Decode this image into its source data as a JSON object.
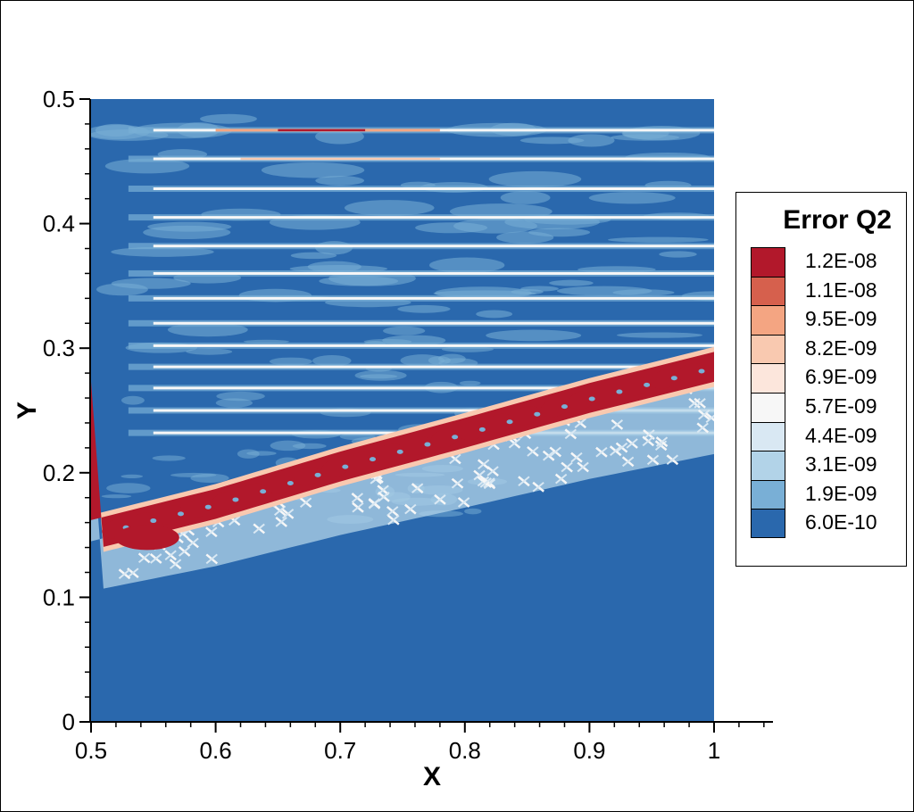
{
  "chart_data": {
    "type": "heatmap",
    "title": "",
    "xlabel": "X",
    "ylabel": "Y",
    "xlim": [
      0.5,
      1.05
    ],
    "ylim": [
      0,
      0.5
    ],
    "data_extent": {
      "x": [
        0.5,
        1.0
      ],
      "y": [
        0.0,
        0.5
      ]
    },
    "x_ticks": [
      0.5,
      0.6,
      0.7,
      0.8,
      0.9,
      1.0
    ],
    "x_tick_labels": [
      "0.5",
      "0.6",
      "0.7",
      "0.8",
      "0.9",
      "1"
    ],
    "y_ticks": [
      0,
      0.1,
      0.2,
      0.3,
      0.4,
      0.5
    ],
    "y_tick_labels": [
      "0",
      "0.1",
      "0.2",
      "0.3",
      "0.4",
      "0.5"
    ],
    "x_minor_step": 0.02,
    "y_minor_step": 0.02,
    "background_color": "#2a68ad",
    "legend": {
      "title": "Error Q2",
      "placement": "right",
      "levels": [
        {
          "label": "1.2E-08",
          "value": 1.2e-08,
          "color": "#b2182b"
        },
        {
          "label": "1.1E-08",
          "value": 1.1e-08,
          "color": "#d6604d"
        },
        {
          "label": "9.5E-09",
          "value": 9.5e-09,
          "color": "#f4a582"
        },
        {
          "label": "8.2E-09",
          "value": 8.2e-09,
          "color": "#f9c9b0"
        },
        {
          "label": "6.9E-09",
          "value": 6.9e-09,
          "color": "#fce6dc"
        },
        {
          "label": "5.7E-09",
          "value": 5.7e-09,
          "color": "#f7f7f7"
        },
        {
          "label": "4.4E-09",
          "value": 4.4e-09,
          "color": "#d9e8f3"
        },
        {
          "label": "3.1E-09",
          "value": 3.1e-09,
          "color": "#b2d3e8"
        },
        {
          "label": "1.9E-09",
          "value": 1.9e-09,
          "color": "#79afd6"
        },
        {
          "label": "6.0E-10",
          "value": 6e-10,
          "color": "#2a68ad"
        }
      ]
    },
    "features": {
      "shock_band": {
        "description_level": "max error band",
        "centerline": [
          [
            0.5,
            0.15
          ],
          [
            0.6,
            0.175
          ],
          [
            0.7,
            0.205
          ],
          [
            0.8,
            0.232
          ],
          [
            0.9,
            0.26
          ],
          [
            1.0,
            0.285
          ]
        ],
        "half_width": 0.012,
        "color_level": "1.2E-08"
      },
      "horizontal_streaks_y": [
        0.475,
        0.452,
        0.428,
        0.405,
        0.382,
        0.36,
        0.34,
        0.32,
        0.302,
        0.285,
        0.268,
        0.25,
        0.232
      ]
    }
  }
}
